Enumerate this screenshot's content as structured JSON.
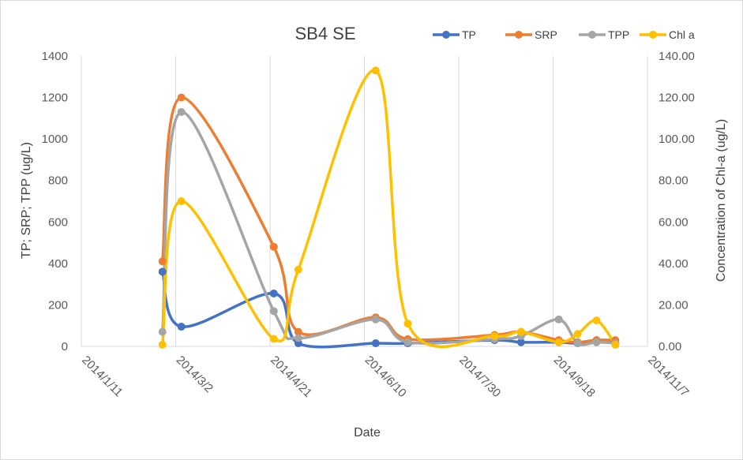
{
  "chart_data": {
    "type": "line",
    "title": "SB4 SE",
    "xlabel": "Date",
    "ylabel": "TP; SRP; TPP (ug/L)",
    "y2label": "Concentration of Chl-a (ug/L)",
    "x_ticks": [
      "2014/1/11",
      "2014/3/2",
      "2014/4/21",
      "2014/6/10",
      "2014/7/30",
      "2014/9/18",
      "2014/11/7"
    ],
    "x_range": [
      "2014-01-11",
      "2014-11-07"
    ],
    "ylim": [
      0,
      1400
    ],
    "y_ticks": [
      "0",
      "200",
      "400",
      "600",
      "800",
      "1000",
      "1200",
      "1400"
    ],
    "y2lim": [
      0,
      140
    ],
    "y2_ticks": [
      "0.00",
      "20.00",
      "40.00",
      "60.00",
      "80.00",
      "100.00",
      "120.00",
      "140.00"
    ],
    "grid": "vertical",
    "legend_position": "top-right",
    "series": [
      {
        "name": "TP",
        "color": "#4472c4",
        "axis": "left",
        "points": [
          [
            "2014-02-23",
            360
          ],
          [
            "2014-03-05",
            95
          ],
          [
            "2014-04-23",
            255
          ],
          [
            "2014-05-06",
            15
          ],
          [
            "2014-06-16",
            15
          ],
          [
            "2014-07-03",
            15
          ],
          [
            "2014-08-18",
            30
          ],
          [
            "2014-09-01",
            20
          ],
          [
            "2014-09-21",
            20
          ],
          [
            "2014-10-01",
            15
          ],
          [
            "2014-10-11",
            30
          ],
          [
            "2014-10-21",
            15
          ]
        ]
      },
      {
        "name": "SRP",
        "color": "#ed7d31",
        "axis": "left",
        "points": [
          [
            "2014-02-23",
            410
          ],
          [
            "2014-03-05",
            1200
          ],
          [
            "2014-04-23",
            480
          ],
          [
            "2014-05-06",
            70
          ],
          [
            "2014-06-16",
            140
          ],
          [
            "2014-07-03",
            35
          ],
          [
            "2014-08-18",
            55
          ],
          [
            "2014-09-01",
            70
          ],
          [
            "2014-09-21",
            30
          ],
          [
            "2014-10-01",
            20
          ],
          [
            "2014-10-11",
            30
          ],
          [
            "2014-10-21",
            30
          ]
        ]
      },
      {
        "name": "TPP",
        "color": "#a5a5a5",
        "axis": "left",
        "points": [
          [
            "2014-02-23",
            70
          ],
          [
            "2014-03-05",
            1130
          ],
          [
            "2014-04-23",
            170
          ],
          [
            "2014-05-06",
            40
          ],
          [
            "2014-06-16",
            130
          ],
          [
            "2014-07-03",
            20
          ],
          [
            "2014-08-18",
            35
          ],
          [
            "2014-09-01",
            50
          ],
          [
            "2014-09-21",
            130
          ],
          [
            "2014-10-01",
            15
          ],
          [
            "2014-10-11",
            20
          ],
          [
            "2014-10-21",
            15
          ]
        ]
      },
      {
        "name": "Chl a",
        "color": "#ffc000",
        "axis": "right",
        "points": [
          [
            "2014-02-23",
            0.8
          ],
          [
            "2014-03-05",
            70
          ],
          [
            "2014-04-23",
            3.6
          ],
          [
            "2014-05-06",
            37
          ],
          [
            "2014-06-16",
            133
          ],
          [
            "2014-07-03",
            11
          ],
          [
            "2014-08-18",
            5
          ],
          [
            "2014-09-01",
            7
          ],
          [
            "2014-09-21",
            2
          ],
          [
            "2014-10-01",
            6
          ],
          [
            "2014-10-11",
            12.5
          ],
          [
            "2014-10-21",
            0.8
          ]
        ]
      }
    ]
  }
}
